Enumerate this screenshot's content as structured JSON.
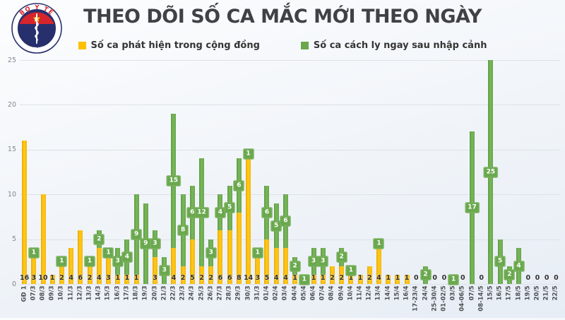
{
  "header": {
    "title": "THEO DÕI SỐ CA MẮC MỚI THEO NGÀY",
    "logo": {
      "top_text": "BỘ Y TẾ",
      "bottom_text": "MINISTRY OF HEALTH"
    }
  },
  "legend": [
    {
      "label": "Số ca phát hiện trong cộng đồng",
      "color": "#FFC000"
    },
    {
      "label": "Số ca cách ly ngay sau nhập cảnh",
      "color": "#6AA84E"
    }
  ],
  "chart_data": {
    "type": "bar",
    "stacked": true,
    "title": "THEO DÕI SỐ CA MẮC MỚI THEO NGÀY",
    "xlabel": "",
    "ylabel": "",
    "ylim": [
      0,
      25
    ],
    "yticks": [
      0,
      5,
      10,
      15,
      20,
      25
    ],
    "grid": true,
    "legend_position": "top",
    "categories": [
      "GĐ 1",
      "07/3",
      "08/3",
      "09/3",
      "10/3",
      "11/3",
      "12/3",
      "13/3",
      "14/3",
      "15/3",
      "16/3",
      "17/3",
      "18/3",
      "19/3",
      "20/3",
      "21/3",
      "22/3",
      "23/3",
      "24/3",
      "25/3",
      "26/3",
      "27/3",
      "28/3",
      "29/3",
      "30/3",
      "31/3",
      "01/4",
      "02/4",
      "03/4",
      "04/4",
      "05/4",
      "06/4",
      "07/4",
      "08/4",
      "09/4",
      "10/4",
      "11/4",
      "12/4",
      "13/4",
      "14/4",
      "15/4",
      "16/4",
      "17-23/4",
      "24/4",
      "25-30/4",
      "01-02/5",
      "03/5",
      "04-06/5",
      "07/5",
      "08-14/5",
      "15/5",
      "16/5",
      "17/5",
      "18/5",
      "19/5",
      "20/5",
      "21/5",
      "22/5"
    ],
    "series": [
      {
        "name": "Số ca phát hiện trong cộng đồng",
        "color": "#FFC000",
        "values": [
          16,
          3,
          10,
          1,
          2,
          4,
          6,
          2,
          4,
          3,
          1,
          1,
          1,
          0,
          3,
          0,
          4,
          2,
          5,
          2,
          2,
          6,
          6,
          8,
          14,
          3,
          5,
          4,
          4,
          1,
          0,
          1,
          1,
          2,
          2,
          1,
          1,
          2,
          4,
          1,
          1,
          1,
          0,
          0,
          0,
          0,
          0,
          0,
          0,
          0,
          0,
          0,
          0,
          0,
          0,
          0,
          0,
          0
        ]
      },
      {
        "name": "Số ca cách ly ngay sau nhập cảnh",
        "color": "#6AA84E",
        "values": [
          0,
          1,
          0,
          0,
          1,
          0,
          0,
          1,
          2,
          1,
          3,
          4,
          9,
          9,
          3,
          3,
          15,
          8,
          6,
          12,
          3,
          4,
          5,
          6,
          1,
          1,
          6,
          5,
          6,
          2,
          1,
          3,
          3,
          0,
          2,
          1,
          0,
          0,
          1,
          0,
          0,
          0,
          0,
          2,
          0,
          0,
          1,
          0,
          17,
          0,
          25,
          5,
          2,
          4,
          0,
          0,
          0,
          0
        ]
      }
    ]
  }
}
